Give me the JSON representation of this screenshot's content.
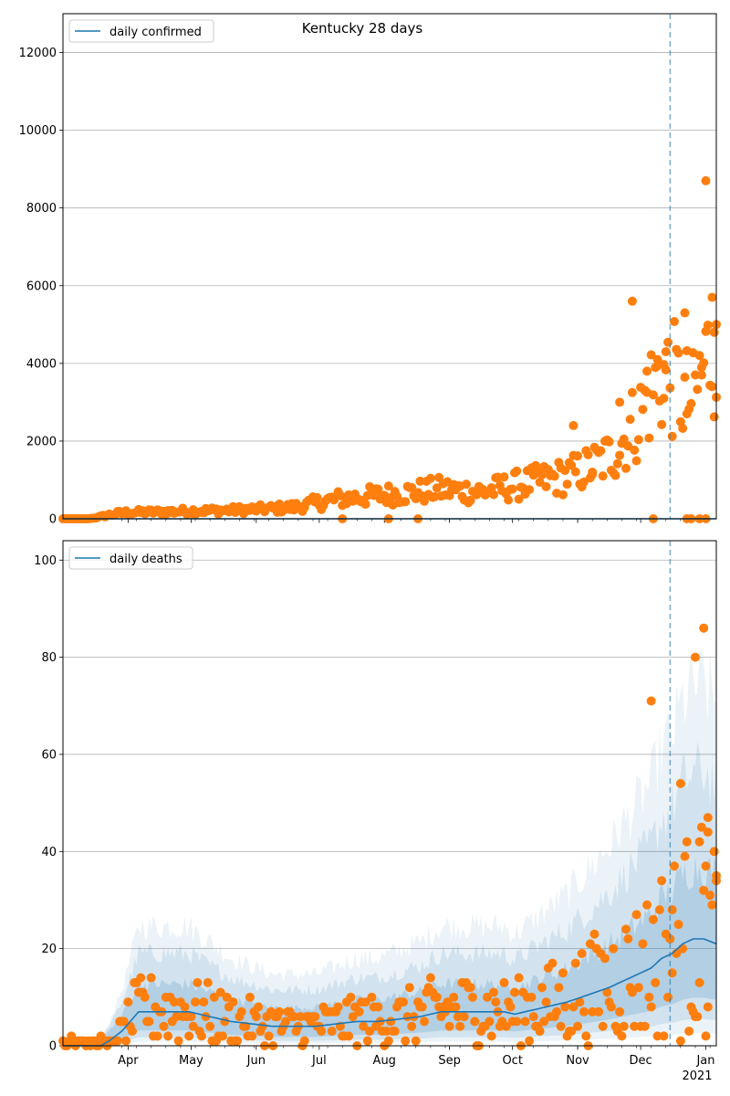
{
  "chart_data": [
    {
      "type": "scatter",
      "title": "Kentucky 28 days",
      "legend": "daily confirmed",
      "legend_position": "top-left",
      "ylim": [
        0,
        13000
      ],
      "yticks": [
        0,
        2000,
        4000,
        6000,
        8000,
        10000,
        12000
      ],
      "grid": "y",
      "trend_line": {
        "start_day": 0,
        "end_day": 311,
        "value": 0
      },
      "vline_day": 289,
      "anchors": [
        [
          0,
          0
        ],
        [
          12,
          0
        ],
        [
          16,
          30
        ],
        [
          20,
          80
        ],
        [
          25,
          130
        ],
        [
          30,
          160
        ],
        [
          40,
          170
        ],
        [
          50,
          180
        ],
        [
          60,
          200
        ],
        [
          70,
          210
        ],
        [
          80,
          220
        ],
        [
          90,
          240
        ],
        [
          100,
          260
        ],
        [
          110,
          300
        ],
        [
          120,
          400
        ],
        [
          130,
          500
        ],
        [
          140,
          550
        ],
        [
          150,
          600
        ],
        [
          160,
          650
        ],
        [
          170,
          700
        ],
        [
          180,
          750
        ],
        [
          190,
          720
        ],
        [
          200,
          700
        ],
        [
          210,
          800
        ],
        [
          220,
          900
        ],
        [
          230,
          1000
        ],
        [
          240,
          1100
        ],
        [
          250,
          1300
        ],
        [
          260,
          1600
        ],
        [
          265,
          1900
        ],
        [
          270,
          2300
        ],
        [
          275,
          2700
        ],
        [
          280,
          3300
        ],
        [
          285,
          3700
        ],
        [
          290,
          3600
        ],
        [
          295,
          3200
        ],
        [
          300,
          3000
        ],
        [
          305,
          4000
        ],
        [
          311,
          4500
        ]
      ],
      "outliers": [
        [
          243,
          2400
        ],
        [
          271,
          5600
        ],
        [
          283,
          4100
        ],
        [
          287,
          4300
        ],
        [
          296,
          5300
        ],
        [
          306,
          8700
        ],
        [
          309,
          5700
        ],
        [
          311,
          5000
        ],
        [
          310,
          4800
        ],
        [
          304,
          3700
        ],
        [
          297,
          2700
        ],
        [
          265,
          3000
        ],
        [
          278,
          3800
        ],
        [
          252,
          1200
        ],
        [
          286,
          3100
        ],
        [
          281,
          0
        ],
        [
          297,
          0
        ],
        [
          299,
          0
        ],
        [
          303,
          0
        ],
        [
          306,
          0
        ],
        [
          133,
          0
        ],
        [
          155,
          0
        ],
        [
          169,
          0
        ]
      ]
    },
    {
      "type": "scatter",
      "legend": "daily deaths",
      "legend_position": "top-left",
      "ylim": [
        0,
        104
      ],
      "yticks": [
        0,
        20,
        40,
        60,
        80,
        100
      ],
      "grid": "y",
      "vline_day": 289,
      "start_date": "2020-03-01",
      "total_days": 311,
      "month_ticks": [
        {
          "label": "Apr",
          "day": 31
        },
        {
          "label": "May",
          "day": 61
        },
        {
          "label": "Jun",
          "day": 92
        },
        {
          "label": "Jul",
          "day": 122
        },
        {
          "label": "Aug",
          "day": 153
        },
        {
          "label": "Sep",
          "day": 184
        },
        {
          "label": "Oct",
          "day": 214
        },
        {
          "label": "Nov",
          "day": 245
        },
        {
          "label": "Dec",
          "day": 275
        },
        {
          "label": "Jan",
          "day": 306
        }
      ],
      "year_label": "2021",
      "trend": [
        [
          0,
          0
        ],
        [
          18,
          0
        ],
        [
          22,
          1
        ],
        [
          25,
          2
        ],
        [
          28,
          3
        ],
        [
          32,
          5
        ],
        [
          36,
          7
        ],
        [
          50,
          7
        ],
        [
          60,
          7
        ],
        [
          70,
          6
        ],
        [
          80,
          5
        ],
        [
          90,
          4.5
        ],
        [
          100,
          4
        ],
        [
          110,
          4
        ],
        [
          120,
          4
        ],
        [
          130,
          4.5
        ],
        [
          140,
          5
        ],
        [
          150,
          5
        ],
        [
          160,
          5.5
        ],
        [
          170,
          6
        ],
        [
          180,
          7
        ],
        [
          190,
          7
        ],
        [
          200,
          7
        ],
        [
          210,
          7
        ],
        [
          215,
          6.5
        ],
        [
          220,
          7
        ],
        [
          230,
          8
        ],
        [
          240,
          9
        ],
        [
          250,
          10.5
        ],
        [
          260,
          12
        ],
        [
          270,
          14
        ],
        [
          280,
          16
        ],
        [
          285,
          18
        ],
        [
          290,
          19
        ],
        [
          295,
          21
        ],
        [
          300,
          22
        ],
        [
          305,
          22
        ],
        [
          311,
          21
        ]
      ],
      "bands": [
        {
          "scale": [
            1.6,
            0.45
          ],
          "opacity": 0.18
        },
        {
          "scale": [
            2.5,
            0.25
          ],
          "opacity": 0.12
        },
        {
          "scale": [
            3.3,
            0.12
          ],
          "opacity": 0.09
        }
      ],
      "outliers": [
        [
          280,
          71
        ],
        [
          305,
          86
        ],
        [
          301,
          80
        ],
        [
          294,
          54
        ],
        [
          307,
          47
        ],
        [
          303,
          42
        ],
        [
          307,
          44
        ],
        [
          311,
          35
        ],
        [
          306,
          37
        ],
        [
          290,
          28
        ]
      ]
    }
  ]
}
